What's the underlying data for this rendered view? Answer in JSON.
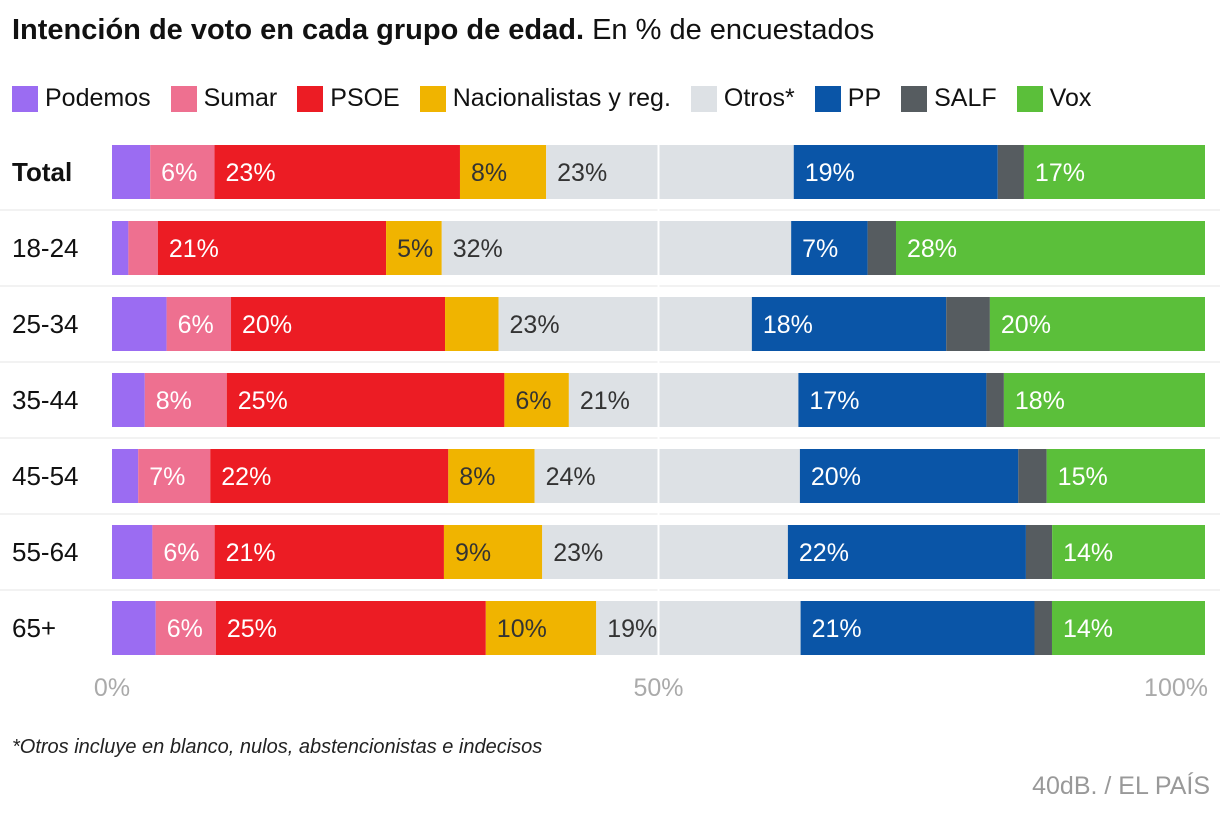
{
  "title_bold": "Intención de voto en cada grupo de edad.",
  "title_rest": " En % de encuestados",
  "footnote": "*Otros incluye en blanco, nulos, abstencionistas e indecisos",
  "source": "40dB. / EL PAÍS",
  "chart_data": {
    "type": "bar",
    "orientation": "horizontal-stacked",
    "categories": [
      "Total",
      "18-24",
      "25-34",
      "35-44",
      "45-54",
      "55-64",
      "65+"
    ],
    "xlim": [
      0,
      100
    ],
    "x_ticks": [
      "0%",
      "50%",
      "100%"
    ],
    "legend_position": "top",
    "series": [
      {
        "name": "Podemos",
        "color": "#9b6cf2",
        "values": [
          3.5,
          1.5,
          5,
          3,
          2.4,
          3.7,
          4
        ],
        "labels": [
          "",
          "",
          "",
          "",
          "",
          "",
          ""
        ]
      },
      {
        "name": "Sumar",
        "color": "#ee7090",
        "values": [
          5.9,
          2.7,
          5.9,
          7.5,
          6.6,
          5.7,
          5.5
        ],
        "labels": [
          "6%",
          "",
          "6%",
          "8%",
          "7%",
          "6%",
          "6%"
        ]
      },
      {
        "name": "PSOE",
        "color": "#ec1c24",
        "values": [
          22.5,
          20.9,
          19.6,
          25.4,
          21.8,
          21,
          24.7
        ],
        "labels": [
          "23%",
          "21%",
          "20%",
          "25%",
          "22%",
          "21%",
          "25%"
        ]
      },
      {
        "name": "Nacionalistas y reg.",
        "color": "#f0b400",
        "values": [
          7.9,
          5.1,
          4.9,
          5.9,
          7.9,
          9,
          10.1
        ],
        "labels": [
          "8%",
          "5%",
          "",
          "6%",
          "8%",
          "9%",
          "10%"
        ]
      },
      {
        "name": "Otros*",
        "color": "#dde1e5",
        "values": [
          22.7,
          32,
          23.2,
          21,
          24.3,
          22.5,
          18.7
        ],
        "labels": [
          "23%",
          "32%",
          "23%",
          "21%",
          "24%",
          "23%",
          "19%"
        ]
      },
      {
        "name": "PP",
        "color": "#0a55a7",
        "values": [
          18.7,
          7,
          17.8,
          17.2,
          20,
          21.8,
          21.4
        ],
        "labels": [
          "19%",
          "7%",
          "18%",
          "17%",
          "20%",
          "22%",
          "21%"
        ]
      },
      {
        "name": "SALF",
        "color": "#565c60",
        "values": [
          2.4,
          2.6,
          4,
          1.6,
          2.6,
          2.4,
          1.6
        ],
        "labels": [
          "",
          "",
          "",
          "",
          "",
          "",
          ""
        ]
      },
      {
        "name": "Vox",
        "color": "#5bbf3a",
        "values": [
          16.6,
          28.3,
          19.7,
          18.4,
          14.5,
          14,
          14
        ],
        "labels": [
          "17%",
          "28%",
          "20%",
          "18%",
          "15%",
          "14%",
          "14%"
        ]
      }
    ]
  }
}
